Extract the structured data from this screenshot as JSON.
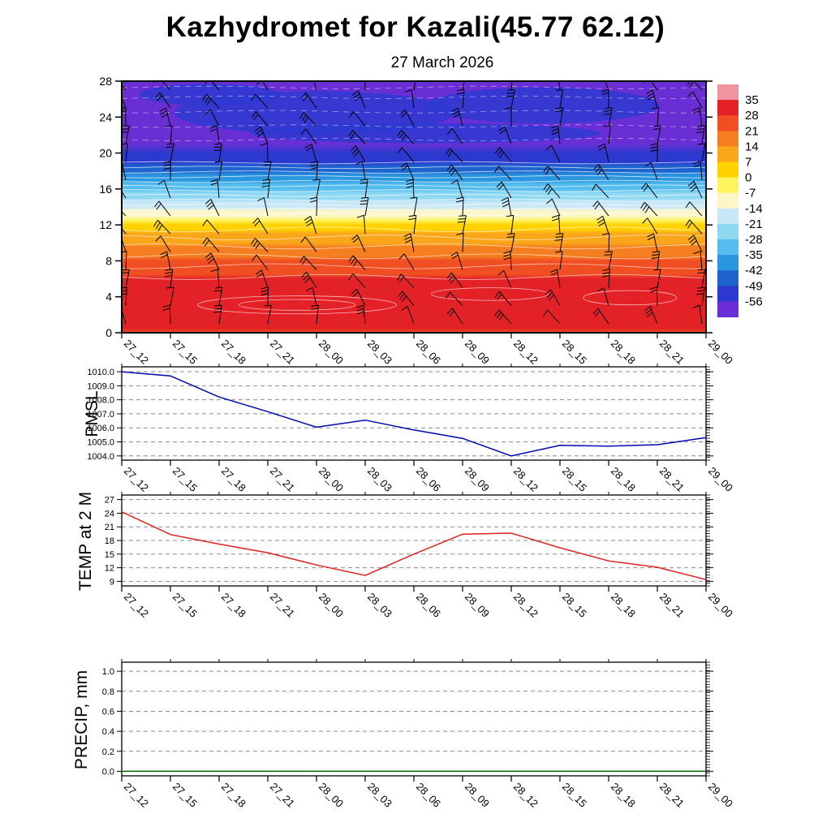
{
  "title": "Kazhydromet for Kazali(45.77 62.12)",
  "subtitle": "27 March 2026",
  "time_labels": [
    "27_12",
    "27_15",
    "27_18",
    "27_21",
    "28_00",
    "28_03",
    "28_06",
    "28_09",
    "28_12",
    "28_15",
    "28_18",
    "28_21",
    "29_00"
  ],
  "chart_data": [
    {
      "name": "upper-air-cross-section",
      "type": "heatmap",
      "ylim": [
        0,
        28
      ],
      "yticks": [
        0,
        4,
        8,
        12,
        16,
        20,
        24,
        28
      ],
      "wind_barbs": true,
      "contour_lines": "white",
      "colorbar": {
        "levels": [
          35,
          28,
          21,
          14,
          7,
          0,
          -7,
          -14,
          -21,
          -28,
          -35,
          -42,
          -49,
          -56
        ],
        "colors": [
          "#f094a2",
          "#e32227",
          "#f04e23",
          "#f57e20",
          "#faa61a",
          "#ffd200",
          "#fff45e",
          "#fdf6c9",
          "#c9e8f7",
          "#8ed8f2",
          "#55bdee",
          "#2b96e0",
          "#1e64cf",
          "#2b39cf",
          "#6a2fd4"
        ]
      },
      "profile": {
        "heights": [
          28,
          26,
          24,
          22,
          21,
          20,
          19.5,
          19,
          18.5,
          18,
          17.5,
          17,
          16.5,
          16,
          15.5,
          15,
          14.5,
          14,
          13.5,
          13,
          12.5,
          12,
          11.5,
          11,
          10.5,
          10,
          9.5,
          9,
          8.5,
          8,
          7.5,
          7,
          6.5,
          6,
          5.5,
          5,
          4.5,
          4,
          3.5,
          3,
          2.5,
          2,
          1.5,
          1,
          0.5,
          0
        ],
        "temps": [
          -56.5,
          -57,
          -57,
          -56.5,
          -56.2,
          -55,
          -53.5,
          -51,
          -48,
          -45,
          -41,
          -37.5,
          -34,
          -30.5,
          -27,
          -24,
          -20.5,
          -17,
          -13,
          -8.5,
          -4,
          0.5,
          4,
          7.5,
          10.5,
          13.5,
          16,
          18.5,
          20.5,
          22.5,
          24.5,
          26,
          27.5,
          28.5,
          29.5,
          30.5,
          31.5,
          32.5,
          33,
          33,
          32.5,
          32,
          31,
          30,
          28.5,
          27.5
        ]
      }
    },
    {
      "name": "pmsl",
      "type": "line",
      "ylabel": "PMSL",
      "line_color": "#0008b0",
      "ylim": [
        1003.7,
        1010.35
      ],
      "yticks": [
        1010,
        1009,
        1008,
        1007,
        1006,
        1005,
        1004
      ],
      "ytick_labels": [
        "1010.0",
        "1009.0",
        "1008.0",
        "1007.0",
        "1006.0",
        "1005.0",
        "1004.0"
      ],
      "values": [
        1010.0,
        1009.7,
        1008.2,
        1007.15,
        1006.05,
        1006.55,
        1005.85,
        1005.25,
        1004.0,
        1004.75,
        1004.7,
        1004.8,
        1005.3
      ]
    },
    {
      "name": "temp-2m",
      "type": "line",
      "ylabel": "TEMP at 2 M",
      "line_color": "#e02222",
      "ylim": [
        8,
        28
      ],
      "yticks": [
        27,
        24,
        21,
        18,
        15,
        12,
        9
      ],
      "ytick_labels": [
        "27",
        "24",
        "21",
        "18",
        "15",
        "12",
        "9"
      ],
      "values": [
        24.3,
        19.3,
        17.2,
        15.3,
        12.6,
        10.3,
        15.0,
        19.4,
        19.6,
        16.4,
        13.5,
        12.1,
        9.4
      ]
    },
    {
      "name": "precip",
      "type": "line",
      "ylabel": "PRECIP, mm",
      "line_color": "#006600",
      "ylim": [
        -0.045,
        1.09
      ],
      "yticks": [
        1.0,
        0.8,
        0.6,
        0.4,
        0.2,
        0.0
      ],
      "ytick_labels": [
        "1.0",
        "0.8",
        "0.6",
        "0.4",
        "0.2",
        "0.0"
      ],
      "values": [
        0,
        0,
        0,
        0,
        0,
        0,
        0,
        0,
        0,
        0,
        0,
        0,
        0
      ]
    }
  ]
}
